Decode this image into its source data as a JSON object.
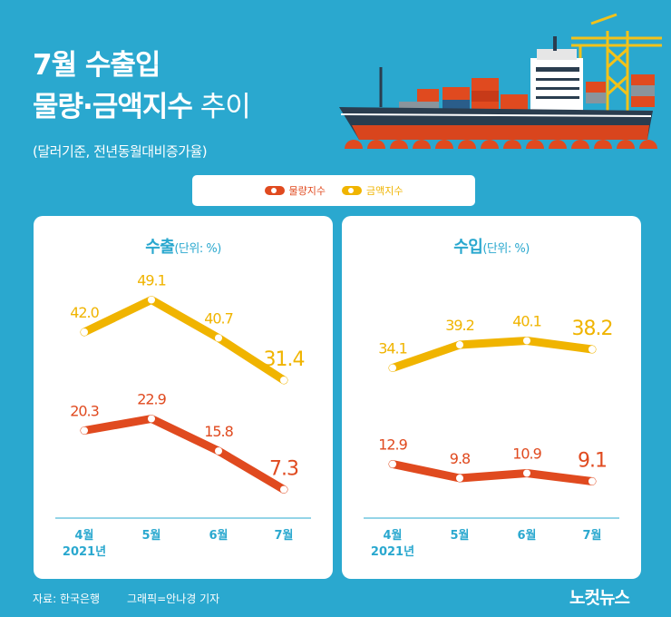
{
  "title": {
    "line1": "7월 수출입",
    "line2_bold": "물량·금액지수",
    "line2_light": " 추이",
    "subtitle": "(달러기준, 전년동월대비증가율)"
  },
  "legend": [
    {
      "label": "물량지수",
      "color": "#e04a1f"
    },
    {
      "label": "금액지수",
      "color": "#f0b400"
    }
  ],
  "colors": {
    "volume": "#e04a1f",
    "value": "#f0b400",
    "accent": "#2aa8cf"
  },
  "chart_data": [
    {
      "type": "line",
      "title": "수출",
      "unit": "(단위: %)",
      "categories": [
        "4월",
        "5월",
        "6월",
        "7월"
      ],
      "year_label": "2021년",
      "series": [
        {
          "name": "금액지수",
          "values": [
            42.0,
            49.1,
            40.7,
            31.4
          ],
          "labels": [
            "42.0",
            "49.1",
            "40.7",
            "31.4"
          ]
        },
        {
          "name": "물량지수",
          "values": [
            20.3,
            22.9,
            15.8,
            7.3
          ],
          "labels": [
            "20.3",
            "22.9",
            "15.8",
            "7.3"
          ]
        }
      ]
    },
    {
      "type": "line",
      "title": "수입",
      "unit": "(단위: %)",
      "categories": [
        "4월",
        "5월",
        "6월",
        "7월"
      ],
      "year_label": "2021년",
      "series": [
        {
          "name": "금액지수",
          "values": [
            34.1,
            39.2,
            40.1,
            38.2
          ],
          "labels": [
            "34.1",
            "39.2",
            "40.1",
            "38.2"
          ]
        },
        {
          "name": "물량지수",
          "values": [
            12.9,
            9.8,
            10.9,
            9.1
          ],
          "labels": [
            "12.9",
            "9.8",
            "10.9",
            "9.1"
          ]
        }
      ]
    }
  ],
  "footer": {
    "source": "자료: 한국은행",
    "credit": "그래픽=안나경 기자",
    "logo": "노컷뉴스"
  }
}
